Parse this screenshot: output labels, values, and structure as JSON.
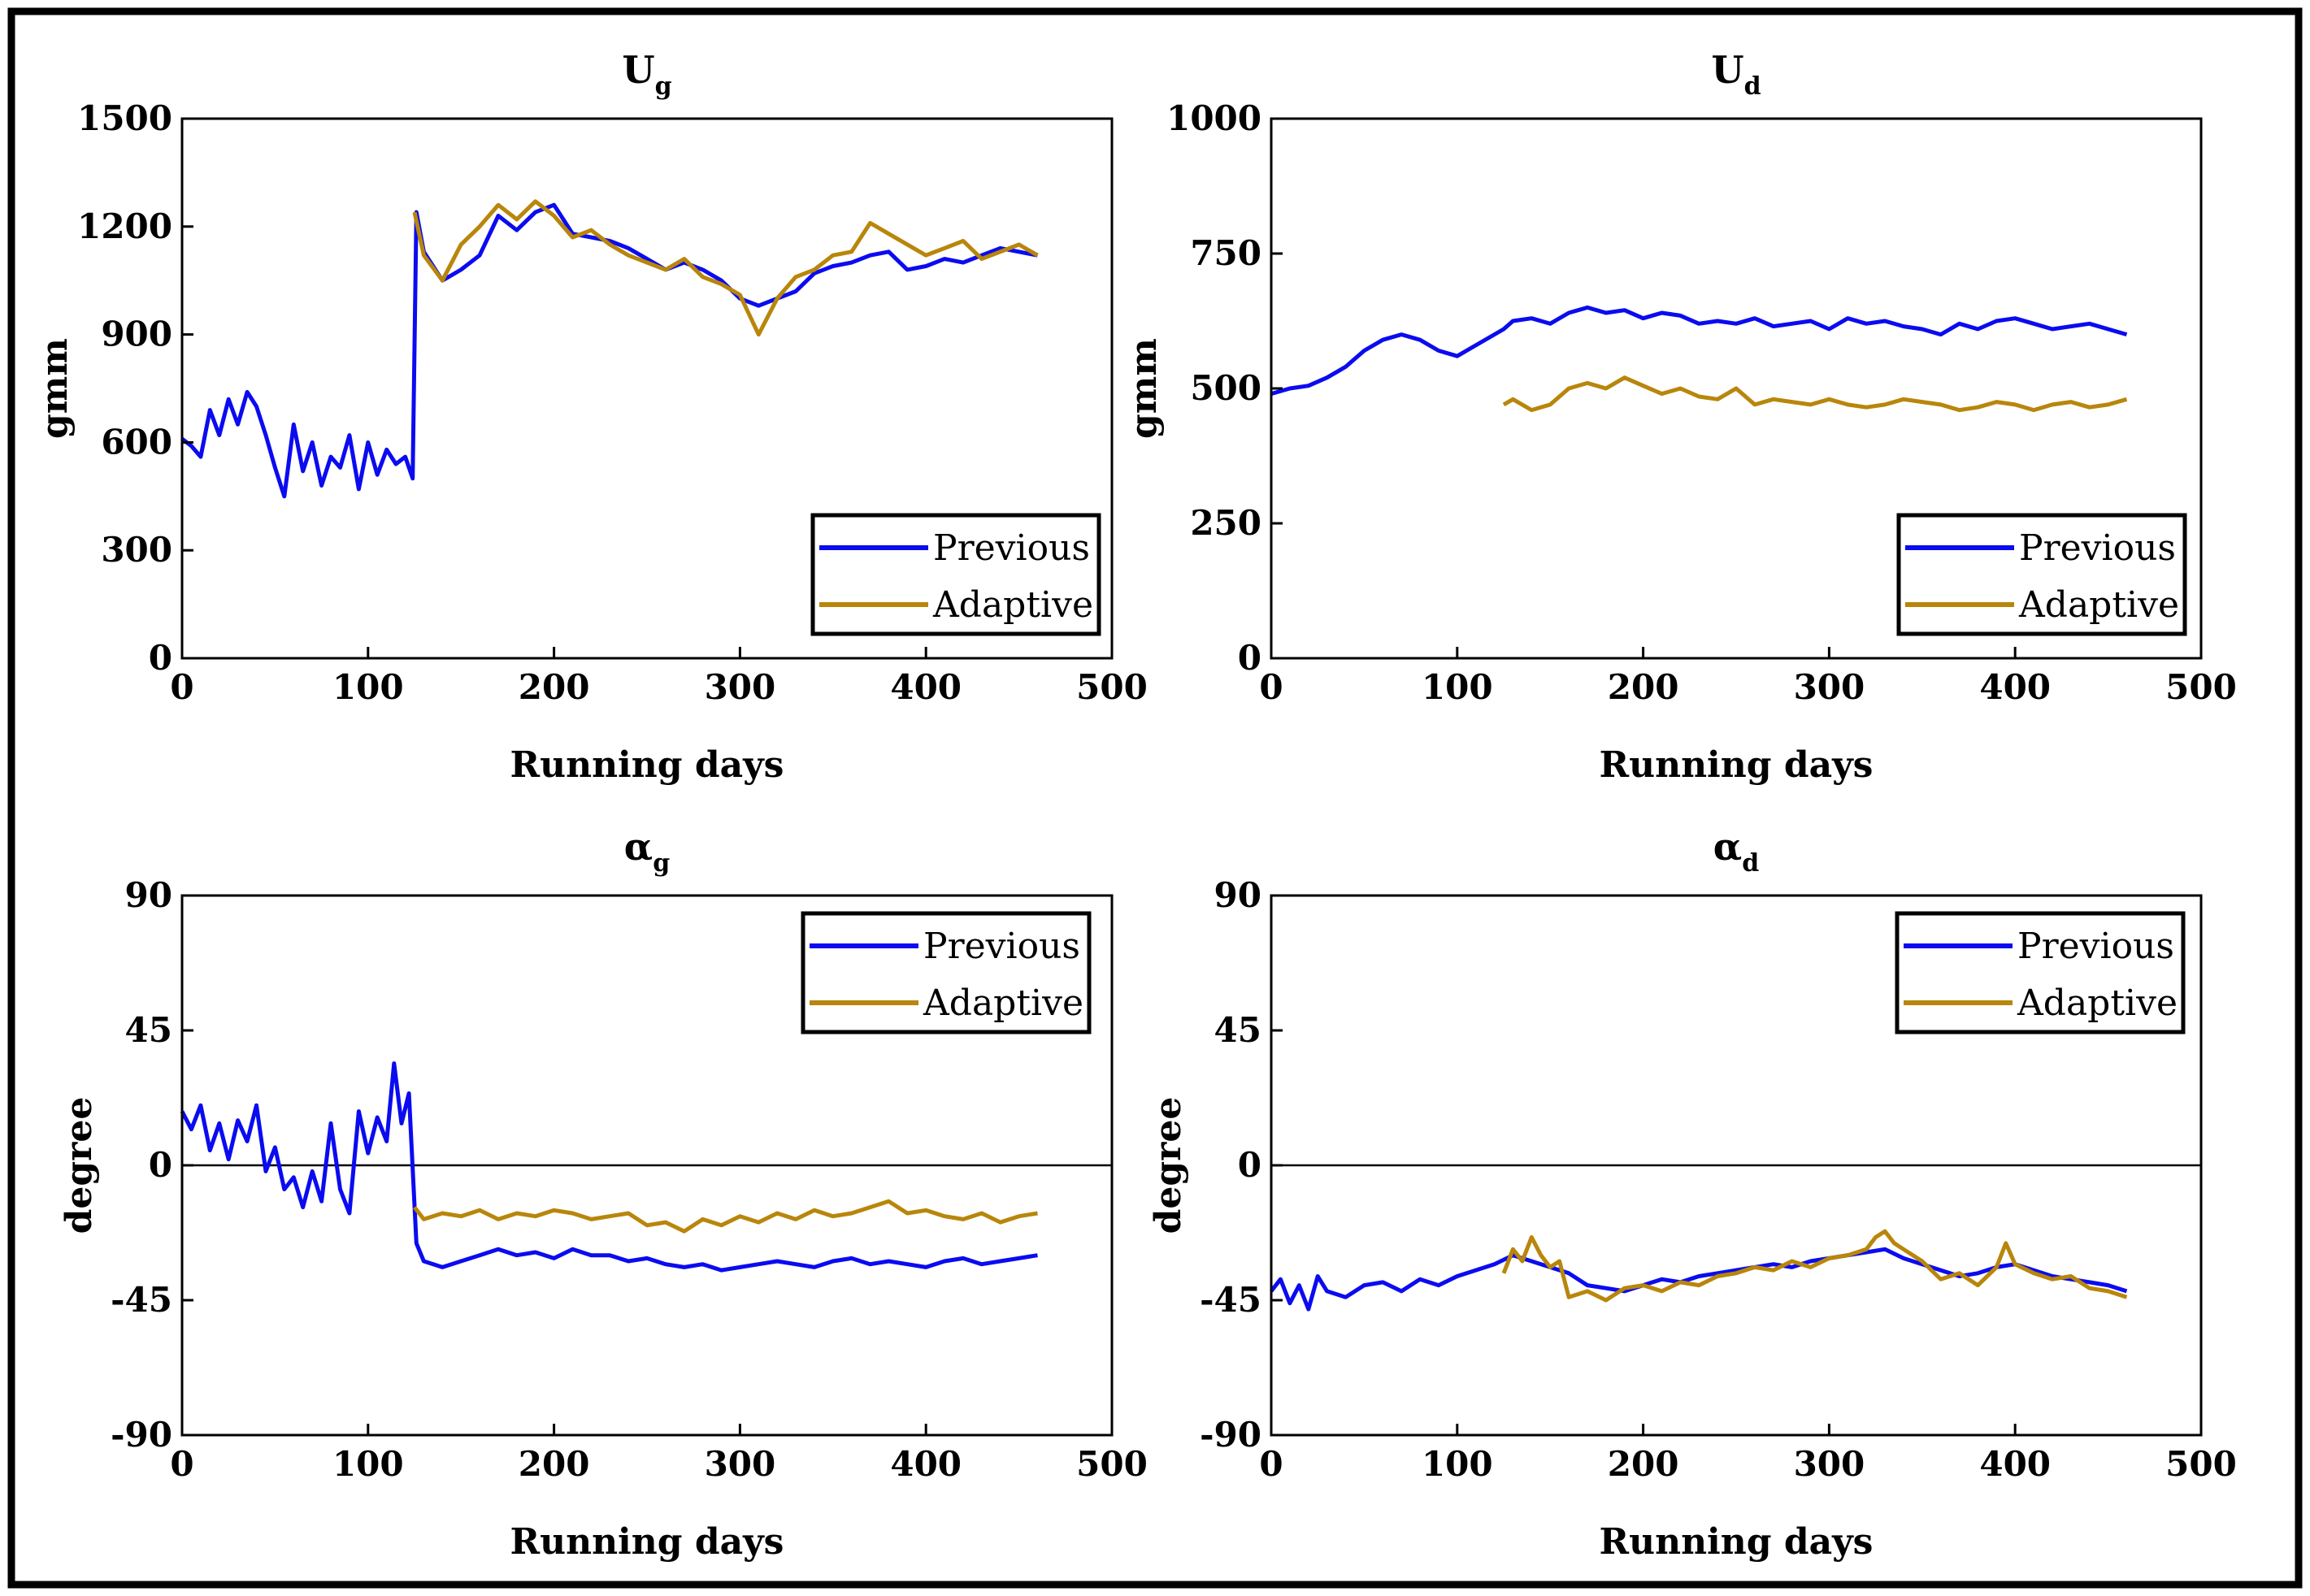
{
  "chart_data": [
    {
      "type": "line",
      "title": "U",
      "title_subscript": "g",
      "xlabel": "Running days",
      "ylabel": "gmm",
      "xlim": [
        0,
        500
      ],
      "ylim": [
        0,
        1500
      ],
      "xticks": [
        0,
        100,
        200,
        300,
        400,
        500
      ],
      "yticks": [
        0,
        300,
        600,
        900,
        1200,
        1500
      ],
      "legend": "bottom-right",
      "zero_line": false,
      "series": [
        {
          "name": "Previous",
          "color": "#0b0bf0",
          "x": [
            0,
            5,
            10,
            15,
            20,
            25,
            30,
            35,
            40,
            45,
            50,
            55,
            60,
            65,
            70,
            75,
            80,
            85,
            90,
            95,
            100,
            105,
            110,
            115,
            120,
            124,
            126,
            130,
            140,
            150,
            160,
            170,
            180,
            190,
            200,
            210,
            220,
            230,
            240,
            250,
            260,
            270,
            280,
            290,
            300,
            310,
            320,
            330,
            340,
            350,
            360,
            370,
            380,
            390,
            400,
            410,
            420,
            430,
            440,
            450,
            460
          ],
          "y": [
            610,
            590,
            560,
            690,
            620,
            720,
            650,
            740,
            700,
            620,
            530,
            450,
            650,
            520,
            600,
            480,
            560,
            530,
            620,
            470,
            600,
            510,
            580,
            540,
            560,
            500,
            1240,
            1130,
            1050,
            1080,
            1120,
            1230,
            1190,
            1240,
            1260,
            1180,
            1170,
            1160,
            1140,
            1110,
            1080,
            1100,
            1080,
            1050,
            1000,
            980,
            1000,
            1020,
            1070,
            1090,
            1100,
            1120,
            1130,
            1080,
            1090,
            1110,
            1100,
            1120,
            1140,
            1130,
            1120
          ]
        },
        {
          "name": "Adaptive",
          "color": "#b8860b",
          "x": [
            125,
            130,
            140,
            150,
            160,
            170,
            180,
            190,
            200,
            210,
            220,
            230,
            240,
            250,
            260,
            270,
            280,
            290,
            300,
            310,
            320,
            330,
            340,
            350,
            360,
            370,
            380,
            390,
            400,
            410,
            420,
            430,
            440,
            450,
            460
          ],
          "y": [
            1240,
            1120,
            1050,
            1150,
            1200,
            1260,
            1220,
            1270,
            1230,
            1170,
            1190,
            1150,
            1120,
            1100,
            1080,
            1110,
            1060,
            1040,
            1010,
            900,
            1000,
            1060,
            1080,
            1120,
            1130,
            1210,
            1180,
            1150,
            1120,
            1140,
            1160,
            1110,
            1130,
            1150,
            1120
          ]
        }
      ]
    },
    {
      "type": "line",
      "title": "U",
      "title_subscript": "d",
      "xlabel": "Running days",
      "ylabel": "gmm",
      "xlim": [
        0,
        500
      ],
      "ylim": [
        0,
        1000
      ],
      "xticks": [
        0,
        100,
        200,
        300,
        400,
        500
      ],
      "yticks": [
        0,
        250,
        500,
        750,
        1000
      ],
      "legend": "bottom-right",
      "zero_line": false,
      "series": [
        {
          "name": "Previous",
          "color": "#0b0bf0",
          "x": [
            0,
            10,
            20,
            30,
            40,
            50,
            60,
            70,
            80,
            90,
            100,
            110,
            120,
            125,
            130,
            140,
            150,
            160,
            170,
            180,
            190,
            200,
            210,
            220,
            230,
            240,
            250,
            260,
            270,
            280,
            290,
            300,
            310,
            320,
            330,
            340,
            350,
            360,
            370,
            380,
            390,
            400,
            410,
            420,
            430,
            440,
            450,
            460
          ],
          "y": [
            490,
            500,
            505,
            520,
            540,
            570,
            590,
            600,
            590,
            570,
            560,
            580,
            600,
            610,
            625,
            630,
            620,
            640,
            650,
            640,
            645,
            630,
            640,
            635,
            620,
            625,
            620,
            630,
            615,
            620,
            625,
            610,
            630,
            620,
            625,
            615,
            610,
            600,
            620,
            610,
            625,
            630,
            620,
            610,
            615,
            620,
            610,
            600
          ]
        },
        {
          "name": "Adaptive",
          "color": "#b8860b",
          "x": [
            125,
            130,
            140,
            150,
            160,
            170,
            180,
            190,
            200,
            210,
            220,
            230,
            240,
            250,
            260,
            270,
            280,
            290,
            300,
            310,
            320,
            330,
            340,
            350,
            360,
            370,
            380,
            390,
            400,
            410,
            420,
            430,
            440,
            450,
            460
          ],
          "y": [
            470,
            480,
            460,
            470,
            500,
            510,
            500,
            520,
            505,
            490,
            500,
            485,
            480,
            500,
            470,
            480,
            475,
            470,
            480,
            470,
            465,
            470,
            480,
            475,
            470,
            460,
            465,
            475,
            470,
            460,
            470,
            475,
            465,
            470,
            480
          ]
        }
      ]
    },
    {
      "type": "line",
      "title": "α",
      "title_subscript": "g",
      "xlabel": "Running days",
      "ylabel": "degree",
      "xlim": [
        0,
        500
      ],
      "ylim": [
        -90,
        90
      ],
      "xticks": [
        0,
        100,
        200,
        300,
        400,
        500
      ],
      "yticks": [
        -90,
        -45,
        0,
        45,
        90
      ],
      "legend": "top-right",
      "zero_line": true,
      "series": [
        {
          "name": "Previous",
          "color": "#0b0bf0",
          "x": [
            0,
            5,
            10,
            15,
            20,
            25,
            30,
            35,
            40,
            45,
            50,
            55,
            60,
            65,
            70,
            75,
            80,
            85,
            90,
            95,
            100,
            105,
            110,
            114,
            118,
            122,
            126,
            130,
            140,
            150,
            160,
            170,
            180,
            190,
            200,
            210,
            220,
            230,
            240,
            250,
            260,
            270,
            280,
            290,
            300,
            310,
            320,
            330,
            340,
            350,
            360,
            370,
            380,
            390,
            400,
            410,
            420,
            430,
            440,
            450,
            460
          ],
          "y": [
            18,
            12,
            20,
            5,
            14,
            2,
            15,
            8,
            20,
            -2,
            6,
            -8,
            -4,
            -14,
            -2,
            -12,
            14,
            -8,
            -16,
            18,
            4,
            16,
            8,
            34,
            14,
            24,
            -26,
            -32,
            -34,
            -32,
            -30,
            -28,
            -30,
            -29,
            -31,
            -28,
            -30,
            -30,
            -32,
            -31,
            -33,
            -34,
            -33,
            -35,
            -34,
            -33,
            -32,
            -33,
            -34,
            -32,
            -31,
            -33,
            -32,
            -33,
            -34,
            -32,
            -31,
            -33,
            -32,
            -31,
            -30
          ]
        },
        {
          "name": "Adaptive",
          "color": "#b8860b",
          "x": [
            125,
            130,
            140,
            150,
            160,
            170,
            180,
            190,
            200,
            210,
            220,
            230,
            240,
            250,
            260,
            270,
            280,
            290,
            300,
            310,
            320,
            330,
            340,
            350,
            360,
            370,
            380,
            390,
            400,
            410,
            420,
            430,
            440,
            450,
            460
          ],
          "y": [
            -14,
            -18,
            -16,
            -17,
            -15,
            -18,
            -16,
            -17,
            -15,
            -16,
            -18,
            -17,
            -16,
            -20,
            -19,
            -22,
            -18,
            -20,
            -17,
            -19,
            -16,
            -18,
            -15,
            -17,
            -16,
            -14,
            -12,
            -16,
            -15,
            -17,
            -18,
            -16,
            -19,
            -17,
            -16
          ]
        }
      ]
    },
    {
      "type": "line",
      "title": "α",
      "title_subscript": "d",
      "xlabel": "Running days",
      "ylabel": "degree",
      "xlim": [
        0,
        500
      ],
      "ylim": [
        -90,
        90
      ],
      "xticks": [
        0,
        100,
        200,
        300,
        400,
        500
      ],
      "yticks": [
        -90,
        -45,
        0,
        45,
        90
      ],
      "legend": "top-right",
      "zero_line": true,
      "series": [
        {
          "name": "Previous",
          "color": "#0b0bf0",
          "x": [
            0,
            5,
            10,
            15,
            20,
            25,
            30,
            40,
            50,
            60,
            70,
            80,
            90,
            100,
            110,
            120,
            130,
            140,
            150,
            160,
            170,
            180,
            190,
            200,
            210,
            220,
            230,
            240,
            250,
            260,
            270,
            280,
            290,
            300,
            310,
            320,
            330,
            340,
            350,
            360,
            370,
            380,
            390,
            400,
            410,
            420,
            430,
            440,
            450,
            460
          ],
          "y": [
            -42,
            -38,
            -46,
            -40,
            -48,
            -37,
            -42,
            -44,
            -40,
            -39,
            -42,
            -38,
            -40,
            -37,
            -35,
            -33,
            -30,
            -32,
            -34,
            -36,
            -40,
            -41,
            -42,
            -40,
            -38,
            -39,
            -37,
            -36,
            -35,
            -34,
            -33,
            -34,
            -32,
            -31,
            -30,
            -29,
            -28,
            -31,
            -33,
            -35,
            -37,
            -36,
            -34,
            -33,
            -35,
            -37,
            -38,
            -39,
            -40,
            -42
          ]
        },
        {
          "name": "Adaptive",
          "color": "#b8860b",
          "x": [
            125,
            130,
            135,
            140,
            145,
            150,
            155,
            160,
            170,
            180,
            190,
            200,
            210,
            220,
            230,
            240,
            250,
            260,
            270,
            280,
            290,
            300,
            310,
            320,
            325,
            330,
            335,
            340,
            350,
            360,
            370,
            380,
            390,
            395,
            400,
            410,
            420,
            430,
            440,
            450,
            460
          ],
          "y": [
            -36,
            -28,
            -32,
            -24,
            -30,
            -34,
            -32,
            -44,
            -42,
            -45,
            -41,
            -40,
            -42,
            -39,
            -40,
            -37,
            -36,
            -34,
            -35,
            -32,
            -34,
            -31,
            -30,
            -28,
            -24,
            -22,
            -26,
            -28,
            -32,
            -38,
            -36,
            -40,
            -34,
            -26,
            -33,
            -36,
            -38,
            -37,
            -41,
            -42,
            -44
          ]
        }
      ]
    }
  ]
}
